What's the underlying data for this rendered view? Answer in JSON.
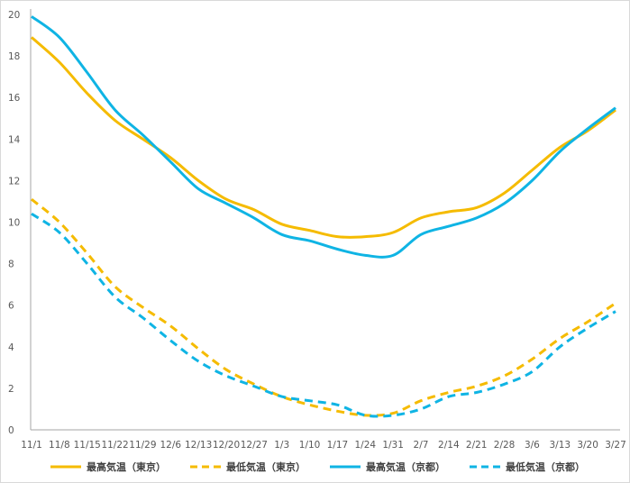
{
  "chart_data": {
    "type": "line",
    "title": "",
    "xlabel": "",
    "ylabel": "",
    "ylim": [
      0,
      20
    ],
    "yticks": [
      0,
      2,
      4,
      6,
      8,
      10,
      12,
      14,
      16,
      18,
      20
    ],
    "grid": false,
    "legend_position": "bottom",
    "categories": [
      "11/1",
      "11/8",
      "11/15",
      "11/22",
      "11/29",
      "12/6",
      "12/13",
      "12/20",
      "12/27",
      "1/3",
      "1/10",
      "1/17",
      "1/24",
      "1/31",
      "2/7",
      "2/14",
      "2/21",
      "2/28",
      "3/6",
      "3/13",
      "3/20",
      "3/27"
    ],
    "tick_labels": [
      "11/1",
      "11/8",
      "11/15",
      "11/22",
      "11/29",
      "12/6",
      "12/13",
      "12/20",
      "12/27",
      "1/3",
      "1/10",
      "1/17",
      "1/24",
      "1/31",
      "2/7",
      "2/14",
      "2/21",
      "2/28",
      "3/6",
      "3/13",
      "3/20",
      "3/27"
    ],
    "series": [
      {
        "name": "最高気温（東京）",
        "color": "#f5bb00",
        "dash": "solid",
        "values": [
          18.9,
          17.7,
          16.2,
          14.9,
          14.0,
          13.1,
          12.0,
          11.1,
          10.6,
          9.9,
          9.6,
          9.3,
          9.3,
          9.5,
          10.2,
          10.5,
          10.7,
          11.4,
          12.5,
          13.6,
          14.4,
          15.4
        ]
      },
      {
        "name": "最低気温（東京）",
        "color": "#f5bb00",
        "dash": "dashed",
        "values": [
          11.1,
          10.0,
          8.5,
          6.9,
          5.9,
          5.0,
          3.9,
          2.9,
          2.2,
          1.6,
          1.2,
          0.9,
          0.7,
          0.8,
          1.4,
          1.8,
          2.1,
          2.6,
          3.4,
          4.4,
          5.2,
          6.1
        ]
      },
      {
        "name": "最高気温（京都）",
        "color": "#0fb4e4",
        "dash": "solid",
        "values": [
          19.9,
          18.9,
          17.2,
          15.4,
          14.2,
          12.9,
          11.6,
          10.9,
          10.2,
          9.4,
          9.1,
          8.7,
          8.4,
          8.4,
          9.4,
          9.8,
          10.2,
          10.9,
          12.0,
          13.4,
          14.5,
          15.5
        ]
      },
      {
        "name": "最低気温（京都）",
        "color": "#0fb4e4",
        "dash": "dashed",
        "values": [
          10.4,
          9.5,
          8.0,
          6.4,
          5.4,
          4.3,
          3.3,
          2.6,
          2.1,
          1.6,
          1.4,
          1.2,
          0.7,
          0.7,
          1.0,
          1.6,
          1.8,
          2.2,
          2.8,
          4.0,
          4.9,
          5.7
        ]
      }
    ]
  }
}
